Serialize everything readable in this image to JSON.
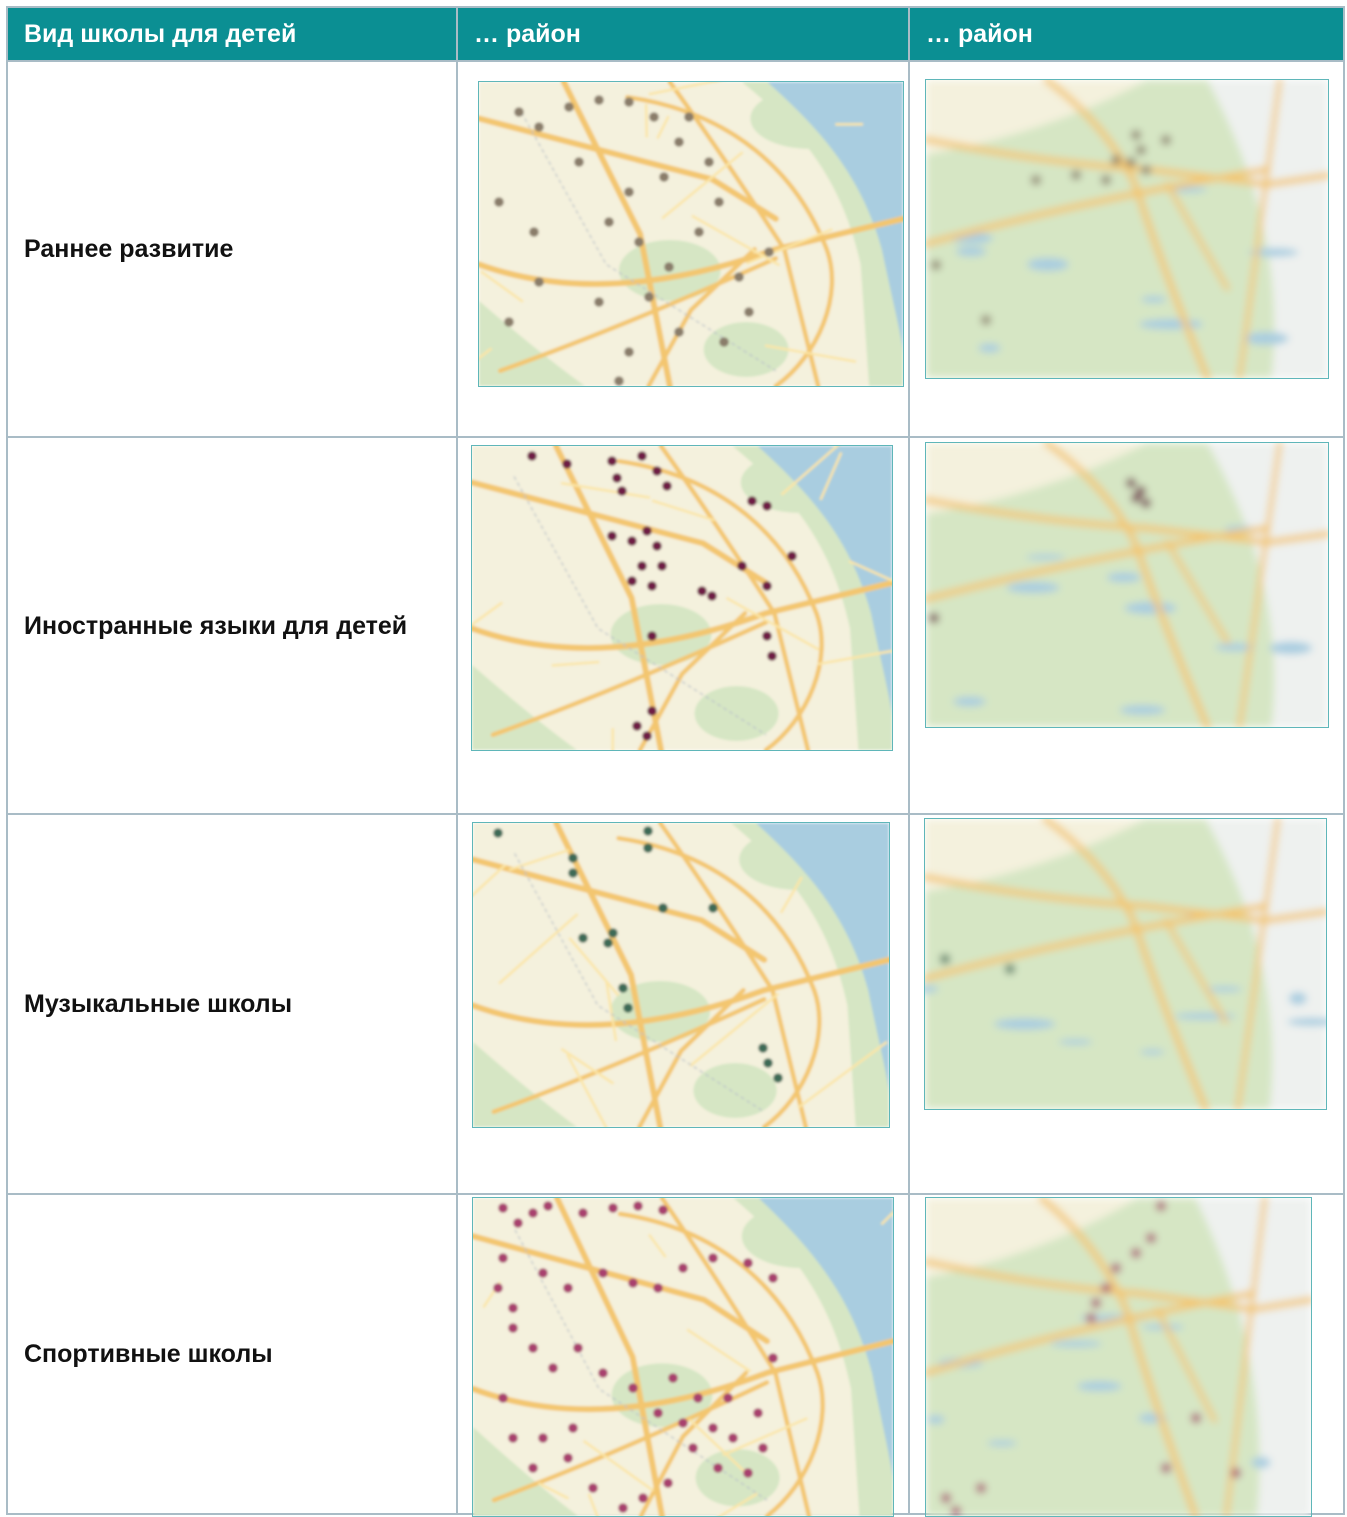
{
  "table": {
    "headers": [
      "Вид школы для детей",
      "… район",
      "… район"
    ],
    "rows": [
      {
        "label": "Раннее развитие",
        "marker_color": "#8a7d6a"
      },
      {
        "label": "Иностранные языки для детей",
        "marker_color": "#6e1b45"
      },
      {
        "label": "Музыкальные школы",
        "marker_color": "#3e6b56"
      },
      {
        "label": "Спортивные школы",
        "marker_color": "#a8406e"
      }
    ]
  },
  "map_style": {
    "land": "#f4f1dd",
    "park": "#d6e6c4",
    "water": "#a9cde0",
    "major_road": "#f3c66f",
    "minor_road": "#fbe5a6"
  }
}
